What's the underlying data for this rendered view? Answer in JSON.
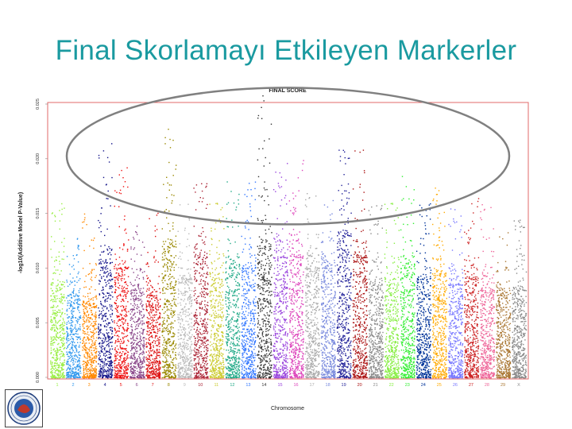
{
  "slide": {
    "title": "Final Skorlamayı Etkileyen Markerler"
  },
  "chart_data": {
    "type": "scatter",
    "subtype": "manhattan",
    "title": "FINAL SCORE",
    "xlabel": "Chromosome",
    "ylabel": "-log10(Additive Model P-Value)",
    "ylim": [
      0,
      0.025
    ],
    "yticks": [
      "0.000",
      "0.005",
      "0.010",
      "0.015",
      "0.020",
      "0.025"
    ],
    "categories": [
      "1",
      "2",
      "3",
      "4",
      "5",
      "6",
      "7",
      "8",
      "9",
      "10",
      "11",
      "12",
      "13",
      "14",
      "15",
      "16",
      "17",
      "18",
      "19",
      "20",
      "21",
      "22",
      "23",
      "24",
      "25",
      "26",
      "27",
      "28",
      "29",
      "X"
    ],
    "chromosome_colors": [
      "#99ee44",
      "#3399ee",
      "#ff8800",
      "#111188",
      "#ee1111",
      "#884488",
      "#dd1111",
      "#998800",
      "#bbbbbb",
      "#aa2233",
      "#cccc33",
      "#22aa88",
      "#3377ff",
      "#333333",
      "#9944dd",
      "#dd44bb",
      "#aaaaaa",
      "#7788dd",
      "#222299",
      "#aa1111",
      "#888888",
      "#88ee44",
      "#33ee33",
      "#003399",
      "#ffaa00",
      "#7777ff",
      "#cc2222",
      "#ee6699",
      "#aa7733",
      "#888888"
    ],
    "band_top": [
      0.0085,
      0.0075,
      0.007,
      0.0105,
      0.01,
      0.008,
      0.0075,
      0.012,
      0.009,
      0.011,
      0.009,
      0.01,
      0.01,
      0.012,
      0.011,
      0.011,
      0.01,
      0.01,
      0.013,
      0.011,
      0.0085,
      0.0085,
      0.01,
      0.009,
      0.0095,
      0.0085,
      0.009,
      0.008,
      0.0075,
      0.008
    ],
    "peak": [
      0.016,
      0.013,
      0.015,
      0.022,
      0.02,
      0.014,
      0.016,
      0.023,
      0.016,
      0.018,
      0.016,
      0.018,
      0.018,
      0.026,
      0.02,
      0.02,
      0.017,
      0.017,
      0.021,
      0.021,
      0.016,
      0.016,
      0.0185,
      0.016,
      0.0175,
      0.0165,
      0.0165,
      0.016,
      0.014,
      0.0145
    ],
    "highlight": {
      "shape": "ellipse",
      "ymin": 0.014,
      "ymax": 0.0265
    },
    "logo": {
      "name": "university-seal",
      "text": "ANKARA ÜNİVERSİTESİ"
    }
  }
}
